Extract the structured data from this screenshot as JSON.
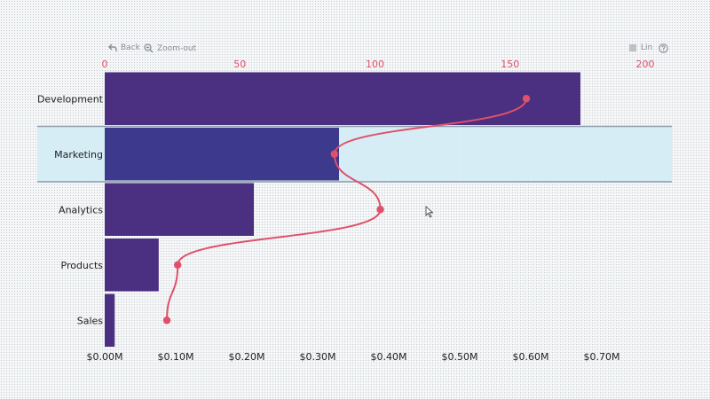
{
  "toolbar": {
    "back_label": "Back",
    "zoom_label": "Zoom-out",
    "scale_label": "Lin",
    "help_icon": "help-circle-icon"
  },
  "colors": {
    "bar": "#4b2f80",
    "highlight_bar": "#3d3a8e",
    "highlight_band": "#d6edf5",
    "line": "#e0506a",
    "band_border": "#8e9aa8"
  },
  "chart_data": {
    "type": "bar",
    "orientation": "horizontal",
    "categories": [
      "Development",
      "Marketing",
      "Analytics",
      "Products",
      "Sales"
    ],
    "series": [
      {
        "axis": "bottom",
        "values": [
          0.67,
          0.33,
          0.21,
          0.076,
          0.014
        ]
      },
      {
        "axis": "top",
        "type": "line",
        "values": [
          156,
          85,
          102,
          27,
          23
        ]
      }
    ],
    "bottom_axis": {
      "ticks": [
        "$0.00M",
        "$0.10M",
        "$0.20M",
        "$0.30M",
        "$0.40M",
        "$0.50M",
        "$0.60M",
        "$0.70M"
      ],
      "range": [
        0,
        0.8
      ]
    },
    "top_axis": {
      "ticks": [
        "0",
        "50",
        "100",
        "150",
        "200"
      ],
      "range": [
        0,
        200
      ]
    },
    "highlighted_category": "Marketing",
    "grid": true
  }
}
